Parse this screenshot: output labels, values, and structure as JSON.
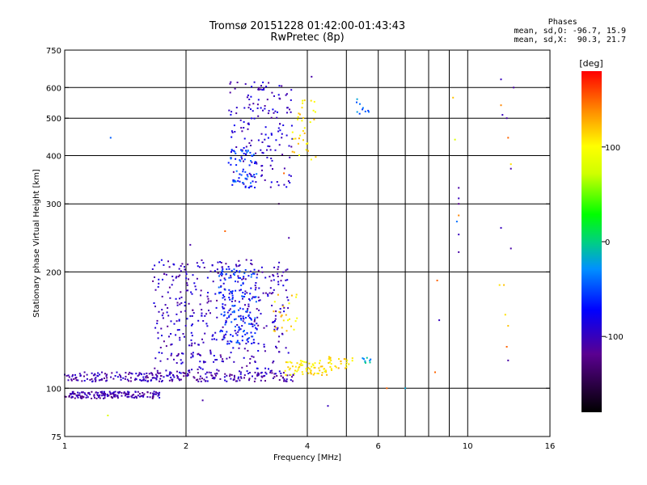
{
  "title": {
    "line1": "Tromsø 20151228 01:42:00-01:43:43",
    "line2": "RwPretec (8p)"
  },
  "phase_info": {
    "heading": "Phases",
    "o_line": "mean, sd,O: -96.7, 15.9",
    "x_line": "mean, sd,X:  90.3, 21.7"
  },
  "colorbar": {
    "unit_label": "[deg]",
    "range": [
      -180,
      180
    ],
    "tick_values": [
      100,
      0,
      -100
    ],
    "tick_labels": [
      "100",
      "0",
      "-100"
    ]
  },
  "chart_data": {
    "type": "scatter",
    "xlabel": "Frequency [MHz]",
    "ylabel": "Stationary phase Virtual Height [km]",
    "x_scale": "log",
    "y_scale": "log",
    "xlim": [
      1,
      16
    ],
    "ylim": [
      75,
      750
    ],
    "grid": true,
    "x_ticks": [
      1,
      2,
      4,
      6,
      10,
      16
    ],
    "x_tick_labels": [
      "1",
      "2",
      "4",
      "6",
      "10",
      "16"
    ],
    "x_grid_values": [
      2,
      4,
      6,
      8,
      10,
      16
    ],
    "x_minor_grid_values": [
      5,
      7,
      9
    ],
    "y_ticks": [
      75,
      100,
      200,
      300,
      400,
      500,
      600,
      750
    ],
    "y_tick_labels": [
      "75",
      "100",
      "200",
      "300",
      "400",
      "500",
      "600",
      "750"
    ],
    "point_color_encoding": "phase in degrees (colour bar)",
    "series": [
      {
        "role": "low-E-echo-dark-blue",
        "clusters": [
          {
            "x": [
              1.0,
              1.72
            ],
            "y": [
              94,
              98
            ],
            "phase": -110,
            "n": 170
          }
        ]
      },
      {
        "role": "E-echo-blue",
        "clusters": [
          {
            "x": [
              1.0,
              3.7
            ],
            "y": [
              104,
              110
            ],
            "phase": -105,
            "n": 260
          },
          {
            "x": [
              3.5,
              4.6
            ],
            "y": [
              108,
              118
            ],
            "phase": 105,
            "n": 70
          },
          {
            "x": [
              4.5,
              5.2
            ],
            "y": [
              112,
              122
            ],
            "phase": 110,
            "n": 25
          },
          {
            "x": [
              5.4,
              5.8
            ],
            "y": [
              116,
              120
            ],
            "phase": -20,
            "n": 10
          }
        ]
      },
      {
        "role": "F-echo-spread",
        "clusters": [
          {
            "x": [
              1.65,
              3.6
            ],
            "y": [
              110,
              215
            ],
            "phase": -100,
            "n": 430
          },
          {
            "x": [
              2.4,
              3.0
            ],
            "y": [
              130,
              205
            ],
            "phase": -60,
            "n": 150
          },
          {
            "x": [
              3.3,
              3.8
            ],
            "y": [
              140,
              175
            ],
            "phase": 110,
            "n": 25
          }
        ]
      },
      {
        "role": "F2-echo-high",
        "clusters": [
          {
            "x": [
              2.55,
              3.7
            ],
            "y": [
              330,
              620
            ],
            "phase": -95,
            "n": 170
          },
          {
            "x": [
              2.55,
              3.0
            ],
            "y": [
              330,
              420
            ],
            "phase": -55,
            "n": 60
          },
          {
            "x": [
              3.65,
              4.2
            ],
            "y": [
              390,
              560
            ],
            "phase": 110,
            "n": 35
          },
          {
            "x": [
              5.3,
              5.7
            ],
            "y": [
              500,
              560
            ],
            "phase": -40,
            "n": 10
          }
        ]
      },
      {
        "role": "isolated-points",
        "points": [
          {
            "x": 1.3,
            "y": 445,
            "phase": -45
          },
          {
            "x": 1.28,
            "y": 85,
            "phase": 80
          },
          {
            "x": 4.5,
            "y": 90,
            "phase": -100
          },
          {
            "x": 2.2,
            "y": 93,
            "phase": -110
          },
          {
            "x": 6.3,
            "y": 100,
            "phase": 150
          },
          {
            "x": 7.0,
            "y": 100,
            "phase": -20
          },
          {
            "x": 8.3,
            "y": 110,
            "phase": 150
          },
          {
            "x": 8.4,
            "y": 190,
            "phase": 150
          },
          {
            "x": 8.5,
            "y": 150,
            "phase": -100
          },
          {
            "x": 9.2,
            "y": 565,
            "phase": 120
          },
          {
            "x": 9.3,
            "y": 440,
            "phase": 80
          },
          {
            "x": 9.5,
            "y": 330,
            "phase": -110
          },
          {
            "x": 9.5,
            "y": 310,
            "phase": -100
          },
          {
            "x": 9.5,
            "y": 300,
            "phase": -120
          },
          {
            "x": 9.4,
            "y": 270,
            "phase": -40
          },
          {
            "x": 9.5,
            "y": 280,
            "phase": 140
          },
          {
            "x": 9.5,
            "y": 250,
            "phase": -100
          },
          {
            "x": 9.5,
            "y": 225,
            "phase": -110
          },
          {
            "x": 12.1,
            "y": 630,
            "phase": -100
          },
          {
            "x": 12.1,
            "y": 540,
            "phase": 140
          },
          {
            "x": 12.2,
            "y": 510,
            "phase": -100
          },
          {
            "x": 12.5,
            "y": 500,
            "phase": -110
          },
          {
            "x": 12.6,
            "y": 445,
            "phase": 150
          },
          {
            "x": 12.8,
            "y": 380,
            "phase": 110
          },
          {
            "x": 12.8,
            "y": 370,
            "phase": -110
          },
          {
            "x": 12.1,
            "y": 260,
            "phase": -100
          },
          {
            "x": 12.8,
            "y": 230,
            "phase": -110
          },
          {
            "x": 13.0,
            "y": 600,
            "phase": -110
          },
          {
            "x": 12.0,
            "y": 185,
            "phase": 110
          },
          {
            "x": 12.3,
            "y": 185,
            "phase": 120
          },
          {
            "x": 12.4,
            "y": 155,
            "phase": 110
          },
          {
            "x": 12.6,
            "y": 145,
            "phase": 120
          },
          {
            "x": 12.5,
            "y": 128,
            "phase": 150
          },
          {
            "x": 12.6,
            "y": 118,
            "phase": -110
          },
          {
            "x": 3.4,
            "y": 300,
            "phase": -150
          },
          {
            "x": 3.5,
            "y": 360,
            "phase": 150
          },
          {
            "x": 3.6,
            "y": 245,
            "phase": -110
          },
          {
            "x": 4.1,
            "y": 640,
            "phase": -110
          },
          {
            "x": 2.5,
            "y": 255,
            "phase": 150
          },
          {
            "x": 2.05,
            "y": 235,
            "phase": -110
          }
        ]
      }
    ]
  }
}
